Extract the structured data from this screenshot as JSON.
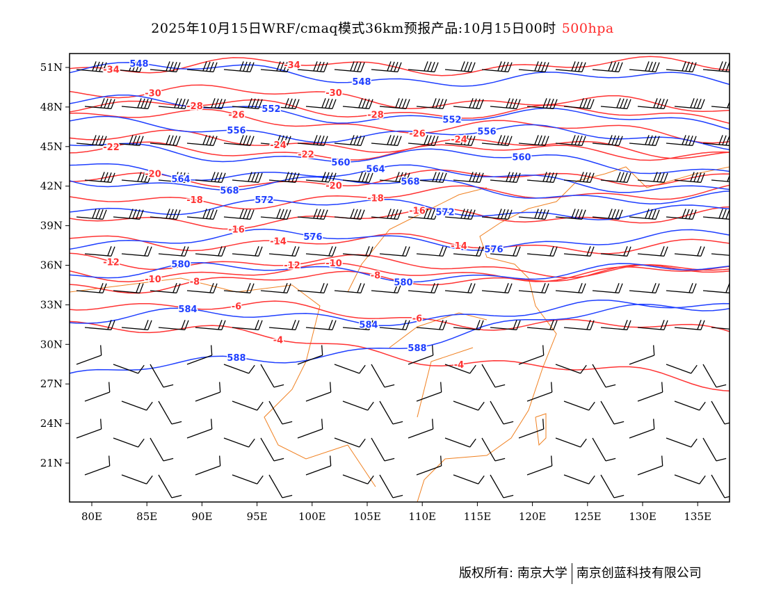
{
  "title": {
    "text": "2025年10月15日WRF/cmaq模式36km预报产品:10月15日00时",
    "level": "500hpa",
    "level_color": "#ff2a2a"
  },
  "axes": {
    "lon_ticks": [
      "80E",
      "85E",
      "90E",
      "95E",
      "100E",
      "105E",
      "110E",
      "115E",
      "120E",
      "125E",
      "130E",
      "135E"
    ],
    "lat_ticks": [
      "51N",
      "48N",
      "45N",
      "42N",
      "39N",
      "36N",
      "33N",
      "30N",
      "27N",
      "24N",
      "21N"
    ]
  },
  "temperature_contours": {
    "color": "#ff3333",
    "levels": [
      "-34",
      "-30",
      "-28",
      "-26",
      "-24",
      "-22",
      "-20",
      "-18",
      "-16",
      "-14",
      "-12",
      "-10",
      "-8",
      "-6",
      "-4"
    ]
  },
  "height_contours": {
    "color": "#1f3fff",
    "levels": [
      "548",
      "552",
      "556",
      "560",
      "564",
      "568",
      "572",
      "576",
      "580",
      "584",
      "588"
    ]
  },
  "coastline_color": "#f08020",
  "footer": {
    "copyright": "版权所有: 南京大学",
    "company": "南京创蓝科技有限公司"
  }
}
